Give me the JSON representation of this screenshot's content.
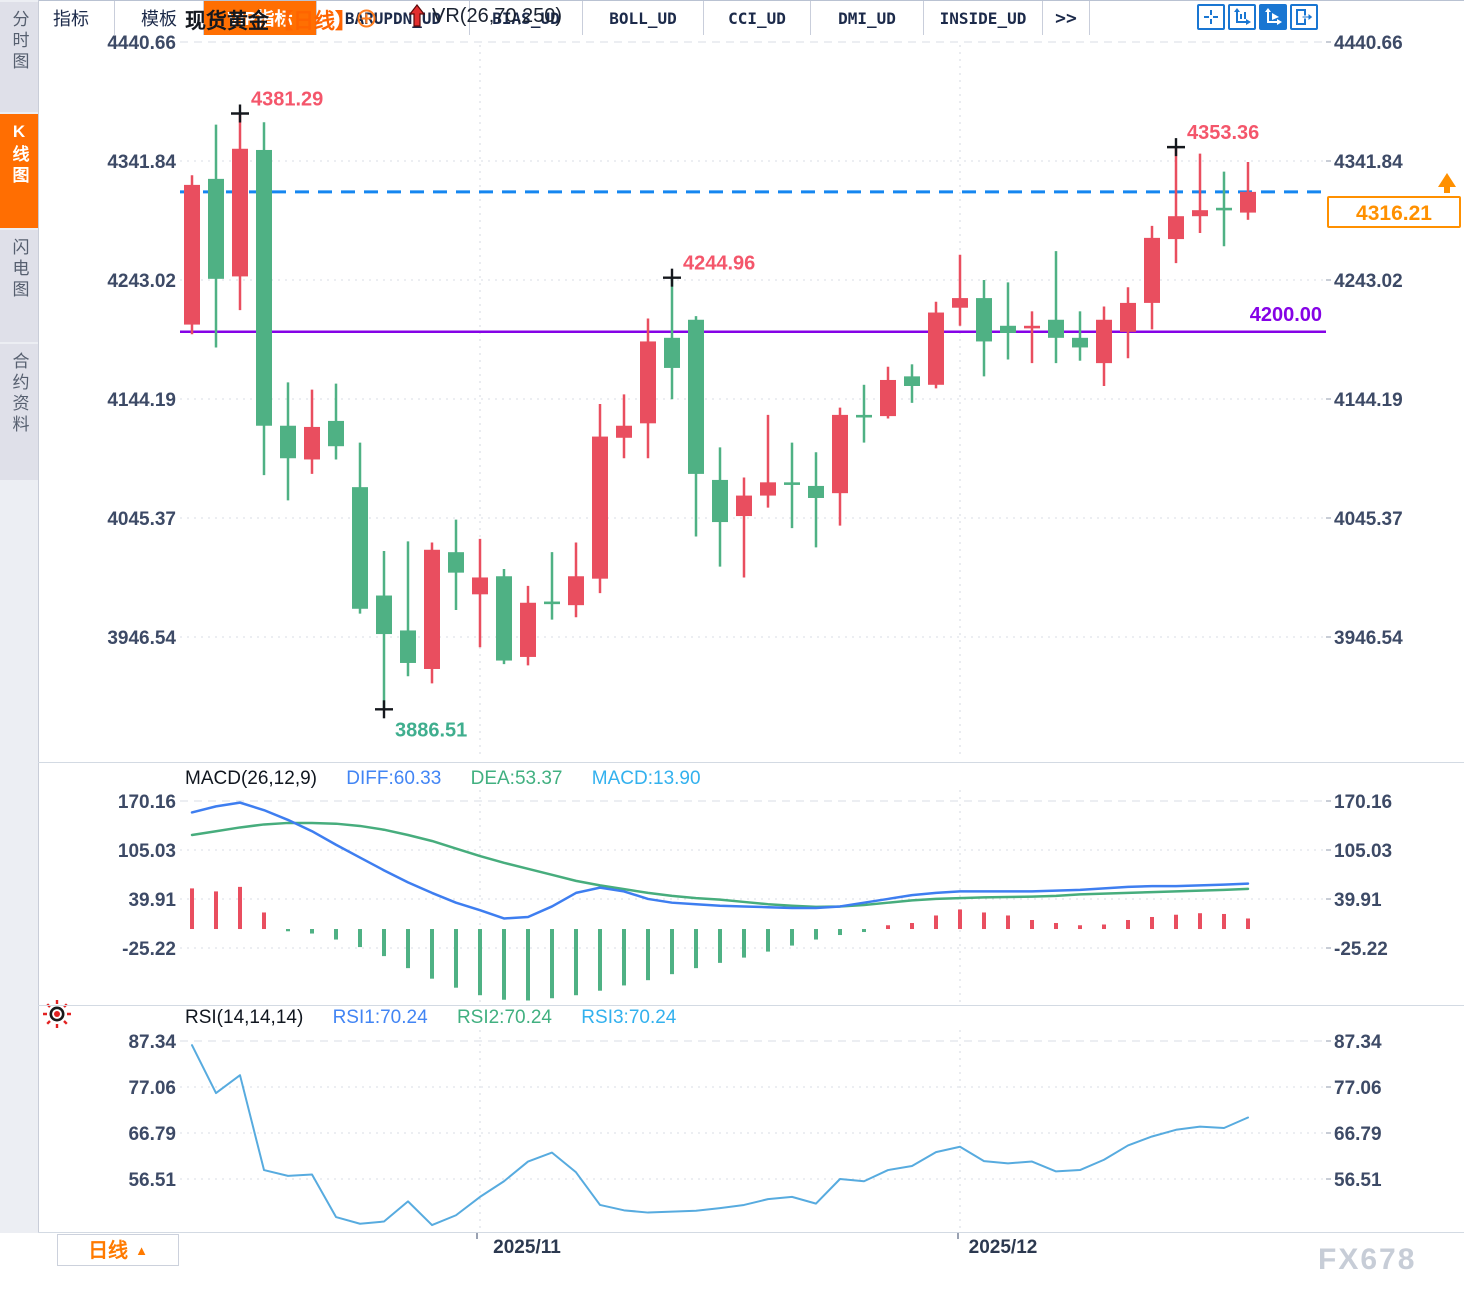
{
  "header": {
    "title": "现货黄金",
    "period": "【日线】",
    "indicator": "VR(26,70,250)"
  },
  "toolbar": {
    "icons": [
      "move-icon",
      "axis-fit-icon",
      "axis-scale-icon",
      "collapse-right-icon"
    ]
  },
  "sidebar": {
    "items": [
      {
        "label": "分时图",
        "active": false
      },
      {
        "label": "K线图",
        "active": true
      },
      {
        "label": "闪电图",
        "active": false
      },
      {
        "label": "合约资料",
        "active": false
      }
    ]
  },
  "macd_header": {
    "name": "MACD(26,12,9)",
    "diff": "DIFF:60.33",
    "dea": "DEA:53.37",
    "macd": "MACD:13.90"
  },
  "rsi_header": {
    "name": "RSI(14,14,14)",
    "rsi1": "RSI1:70.24",
    "rsi2": "RSI2:70.24",
    "rsi3": "RSI3:70.24"
  },
  "period_button": {
    "label": "日线",
    "arrow": "▲"
  },
  "tabs": [
    "指标",
    "模板",
    "VIP指标",
    "BARUPDN_UD",
    "BIAS_UD",
    "BOLL_UD",
    "CCI_UD",
    "DMI_UD",
    "INSIDE_UD",
    ">>"
  ],
  "watermark": "FX678",
  "colors": {
    "up": "#e94e5f",
    "down": "#4fb184",
    "diff_line": "#3e7ef0",
    "dea_line": "#47ad7d",
    "rsi_line": "#57abdf",
    "last_price_line": "#1586f0",
    "support_line": "#8502e6",
    "accent_orange": "#ff6f02",
    "annotation_high": "#f4566b",
    "annotation_low": "#3fae8e",
    "axis_text": "#3d4a66"
  },
  "chart_data": [
    {
      "type": "candlestick",
      "title": "现货黄金 日线",
      "y_ticks": [
        4440.66,
        4341.84,
        4243.02,
        4144.19,
        4045.37,
        3946.54
      ],
      "x_labels": [
        {
          "text": "2025/11",
          "index": 12
        },
        {
          "text": "2025/12",
          "index": 32
        }
      ],
      "candles": [
        [
          4206,
          4330,
          4198,
          4322
        ],
        [
          4327,
          4372,
          4187,
          4244
        ],
        [
          4246,
          4381.29,
          4218,
          4352
        ],
        [
          4351,
          4374,
          4081,
          4122
        ],
        [
          4122,
          4158,
          4060,
          4095
        ],
        [
          4094,
          4152,
          4082,
          4121
        ],
        [
          4126,
          4157,
          4094,
          4105
        ],
        [
          4071,
          4108,
          3966,
          3970
        ],
        [
          3981,
          4018,
          3886.51,
          3949
        ],
        [
          3952,
          4026,
          3914,
          3925
        ],
        [
          3920,
          4025,
          3908,
          4019
        ],
        [
          4017,
          4044,
          3969,
          4000
        ],
        [
          3982,
          4028,
          3938,
          3996
        ],
        [
          3997,
          4003,
          3924,
          3927
        ],
        [
          3930,
          3989,
          3923,
          3975
        ],
        [
          3976,
          4017,
          3961,
          3974
        ],
        [
          3973,
          4025,
          3963,
          3997
        ],
        [
          3995,
          4140,
          3983,
          4113
        ],
        [
          4112,
          4148,
          4095,
          4122
        ],
        [
          4124,
          4211,
          4095,
          4192
        ],
        [
          4195,
          4244.96,
          4144,
          4170
        ],
        [
          4210,
          4213,
          4030,
          4082
        ],
        [
          4077,
          4104,
          4005,
          4042
        ],
        [
          4047,
          4079,
          3996,
          4064
        ],
        [
          4064,
          4131,
          4054,
          4075
        ],
        [
          4075,
          4108,
          4037,
          4074
        ],
        [
          4072,
          4100,
          4021,
          4062
        ],
        [
          4066,
          4137,
          4039,
          4131
        ],
        [
          4131,
          4156,
          4108,
          4130
        ],
        [
          4130,
          4171,
          4128,
          4160
        ],
        [
          4163,
          4173,
          4141,
          4155
        ],
        [
          4156,
          4225,
          4153,
          4216
        ],
        [
          4220,
          4264,
          4205,
          4228
        ],
        [
          4228,
          4243,
          4163,
          4192
        ],
        [
          4205,
          4241,
          4177,
          4199
        ],
        [
          4204,
          4217,
          4174,
          4205
        ],
        [
          4210,
          4267,
          4174,
          4195
        ],
        [
          4195,
          4217,
          4176,
          4187
        ],
        [
          4174,
          4221,
          4155,
          4210
        ],
        [
          4200,
          4237,
          4178,
          4224
        ],
        [
          4224,
          4288,
          4202,
          4278
        ],
        [
          4277,
          4353.36,
          4257,
          4296
        ],
        [
          4296,
          4348,
          4282,
          4301
        ],
        [
          4303,
          4333,
          4271,
          4302
        ],
        [
          4299,
          4341,
          4293,
          4316.21
        ]
      ],
      "annotations": [
        {
          "text": "4381.29",
          "price": 4381.29,
          "candle": 2,
          "position": "above",
          "color": "#f4566b"
        },
        {
          "text": "4244.96",
          "price": 4244.96,
          "candle": 20,
          "position": "above",
          "color": "#f4566b"
        },
        {
          "text": "4353.36",
          "price": 4353.36,
          "candle": 41,
          "position": "above",
          "color": "#f4566b"
        },
        {
          "text": "3886.51",
          "price": 3886.51,
          "candle": 8,
          "position": "below",
          "color": "#3fae8e"
        }
      ],
      "hlines": [
        {
          "label": "4200.00",
          "value": 4200.0,
          "style": "solid",
          "color": "#8502e6"
        },
        {
          "label": "4316.21",
          "value": 4316.21,
          "style": "dashed",
          "color": "#1586f0"
        }
      ],
      "last_price": 4316.21
    },
    {
      "type": "bar",
      "title": "MACD(26,12,9)",
      "y_ticks": [
        170.16,
        105.03,
        39.91,
        -25.22
      ],
      "series": [
        {
          "name": "DIFF",
          "current": 60.33,
          "values": [
            155,
            163,
            168,
            158,
            145,
            130,
            112,
            95,
            78,
            62,
            48,
            35,
            25,
            14,
            16,
            30,
            48,
            55,
            50,
            40,
            35,
            33,
            31,
            30,
            29,
            28,
            28,
            30,
            35,
            40,
            45,
            48,
            50,
            50,
            50,
            50,
            51,
            52,
            54,
            56,
            57,
            57,
            58,
            59,
            60.33
          ]
        },
        {
          "name": "DEA",
          "current": 53.37,
          "values": [
            125,
            130,
            135,
            139,
            141,
            141,
            140,
            137,
            132,
            125,
            117,
            107,
            97,
            88,
            80,
            72,
            64,
            58,
            53,
            48,
            44,
            41,
            39,
            36,
            33,
            31,
            29.5,
            30,
            32,
            35,
            38,
            40,
            41,
            42,
            42.5,
            43,
            44,
            46,
            47,
            48,
            49,
            50,
            51,
            52,
            53.37
          ]
        },
        {
          "name": "MACD",
          "current": 13.9,
          "values": [
            54,
            50,
            56,
            22,
            -3,
            -6,
            -14,
            -24,
            -36,
            -52,
            -66,
            -78,
            -88,
            -94,
            -95,
            -92,
            -88,
            -82,
            -75,
            -68,
            -60,
            -52,
            -45,
            -38,
            -30,
            -22,
            -14,
            -8,
            -4,
            5,
            8,
            18,
            26,
            22,
            18,
            12,
            8,
            5,
            6,
            12,
            16,
            19,
            21,
            20,
            14
          ]
        }
      ]
    },
    {
      "type": "line",
      "title": "RSI(14,14,14)",
      "y_ticks": [
        87.34,
        77.06,
        66.79,
        56.51
      ],
      "series": [
        {
          "name": "RSI1",
          "current": 70.24,
          "values": [
            86.4,
            75.7,
            79.7,
            58.5,
            57.2,
            57.5,
            48,
            46.5,
            47,
            51.5,
            46.2,
            48.4,
            52.5,
            56,
            60.4,
            62.4,
            58,
            50.7,
            49.5,
            49,
            49.2,
            49.4,
            50,
            50.7,
            52,
            52.5,
            51,
            56.5,
            56,
            58.5,
            59.4,
            62.5,
            63.7,
            60.5,
            60,
            60.4,
            58.2,
            58.5,
            60.8,
            64,
            66,
            67.5,
            68.2,
            67.9,
            70.24
          ]
        }
      ]
    }
  ]
}
